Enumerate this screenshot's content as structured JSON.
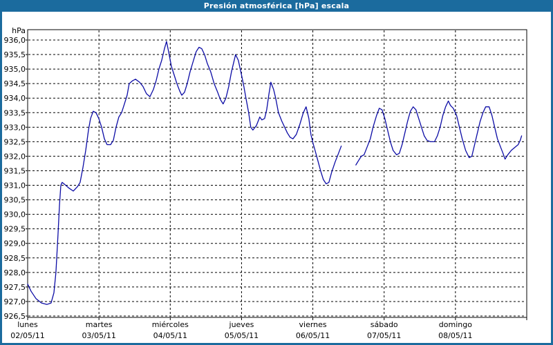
{
  "window": {
    "title": "Presión atmosférica [hPa] escala"
  },
  "colors": {
    "frame_blue": "#1B6B9E",
    "title_text": "#FFFFFF",
    "plot_background": "#FFFFFF",
    "grid": "#000000",
    "axis_text": "#000000",
    "line": "#0B0BA5"
  },
  "chart_data": {
    "type": "line",
    "title": "Presión atmosférica [hPa] escala",
    "unit_label": "hPa",
    "grid": "dashed",
    "legend_position": "none",
    "y_axis": {
      "min": 926.5,
      "max": 936.0,
      "step": 0.5,
      "tick_labels": [
        "936,0",
        "935,5",
        "935,0",
        "934,5",
        "934,0",
        "933,5",
        "933,0",
        "932,5",
        "932,0",
        "931,5",
        "931,0",
        "930,5",
        "930,0",
        "929,5",
        "929,0",
        "928,5",
        "928,0",
        "927,5",
        "927,0",
        "926,5"
      ]
    },
    "x_axis": {
      "unit": "days",
      "days": [
        {
          "name": "lunes",
          "date": "02/05/11"
        },
        {
          "name": "martes",
          "date": "03/05/11"
        },
        {
          "name": "miércoles",
          "date": "04/05/11"
        },
        {
          "name": "jueves",
          "date": "05/05/11"
        },
        {
          "name": "viernes",
          "date": "06/05/11"
        },
        {
          "name": "sábado",
          "date": "07/05/11"
        },
        {
          "name": "domingo",
          "date": "08/05/11"
        }
      ]
    },
    "series": [
      {
        "name": "Presión atmosférica [hPa]",
        "note": "t is days since lunes 02/05/11 00:00; gap in data late viernes",
        "segments": [
          [
            [
              0.0,
              927.6
            ],
            [
              0.048,
              927.35
            ],
            [
              0.116,
              927.1
            ],
            [
              0.194,
              926.95
            ],
            [
              0.271,
              926.9
            ],
            [
              0.329,
              926.95
            ],
            [
              0.368,
              927.3
            ],
            [
              0.397,
              928.0
            ],
            [
              0.426,
              929.3
            ],
            [
              0.446,
              930.3
            ],
            [
              0.465,
              931.0
            ],
            [
              0.484,
              931.1
            ],
            [
              0.533,
              931.0
            ],
            [
              0.581,
              930.9
            ],
            [
              0.64,
              930.8
            ],
            [
              0.698,
              930.95
            ],
            [
              0.736,
              931.1
            ],
            [
              0.775,
              931.6
            ],
            [
              0.814,
              932.2
            ],
            [
              0.853,
              932.9
            ],
            [
              0.882,
              933.3
            ],
            [
              0.92,
              933.55
            ],
            [
              0.959,
              933.5
            ],
            [
              0.998,
              933.3
            ],
            [
              1.037,
              933.0
            ],
            [
              1.076,
              932.6
            ],
            [
              1.114,
              932.4
            ],
            [
              1.163,
              932.4
            ],
            [
              1.202,
              932.55
            ],
            [
              1.24,
              933.0
            ],
            [
              1.279,
              933.35
            ],
            [
              1.318,
              933.5
            ],
            [
              1.357,
              933.8
            ],
            [
              1.395,
              934.1
            ],
            [
              1.424,
              934.5
            ],
            [
              1.473,
              934.6
            ],
            [
              1.512,
              934.65
            ],
            [
              1.57,
              934.55
            ],
            [
              1.618,
              934.4
            ],
            [
              1.667,
              934.15
            ],
            [
              1.715,
              934.05
            ],
            [
              1.764,
              934.3
            ],
            [
              1.802,
              934.6
            ],
            [
              1.841,
              935.0
            ],
            [
              1.88,
              935.3
            ],
            [
              1.919,
              935.7
            ],
            [
              1.948,
              935.95
            ],
            [
              1.977,
              935.6
            ],
            [
              2.016,
              935.1
            ],
            [
              2.054,
              934.8
            ],
            [
              2.093,
              934.5
            ],
            [
              2.132,
              934.25
            ],
            [
              2.161,
              934.1
            ],
            [
              2.2,
              934.2
            ],
            [
              2.238,
              934.5
            ],
            [
              2.277,
              934.9
            ],
            [
              2.326,
              935.3
            ],
            [
              2.364,
              935.6
            ],
            [
              2.403,
              935.75
            ],
            [
              2.442,
              935.7
            ],
            [
              2.481,
              935.5
            ],
            [
              2.519,
              935.2
            ],
            [
              2.568,
              934.9
            ],
            [
              2.616,
              934.5
            ],
            [
              2.665,
              934.2
            ],
            [
              2.703,
              933.95
            ],
            [
              2.742,
              933.8
            ],
            [
              2.781,
              934.0
            ],
            [
              2.82,
              934.4
            ],
            [
              2.858,
              934.9
            ],
            [
              2.887,
              935.2
            ],
            [
              2.916,
              935.5
            ],
            [
              2.955,
              935.3
            ],
            [
              3.004,
              934.75
            ],
            [
              3.033,
              934.4
            ],
            [
              3.062,
              934.0
            ],
            [
              3.1,
              933.5
            ],
            [
              3.13,
              933.0
            ],
            [
              3.159,
              932.9
            ],
            [
              3.207,
              933.05
            ],
            [
              3.256,
              933.35
            ],
            [
              3.285,
              933.25
            ],
            [
              3.324,
              933.3
            ],
            [
              3.353,
              933.6
            ],
            [
              3.382,
              934.1
            ],
            [
              3.411,
              934.55
            ],
            [
              3.45,
              934.3
            ],
            [
              3.479,
              934.0
            ],
            [
              3.517,
              933.5
            ],
            [
              3.566,
              933.2
            ],
            [
              3.605,
              933.0
            ],
            [
              3.643,
              932.8
            ],
            [
              3.682,
              932.65
            ],
            [
              3.721,
              932.6
            ],
            [
              3.769,
              932.75
            ],
            [
              3.818,
              933.1
            ],
            [
              3.866,
              933.5
            ],
            [
              3.905,
              933.7
            ],
            [
              3.944,
              933.3
            ],
            [
              3.973,
              932.75
            ],
            [
              4.002,
              932.45
            ],
            [
              4.031,
              932.2
            ],
            [
              4.07,
              931.85
            ],
            [
              4.109,
              931.5
            ],
            [
              4.147,
              931.2
            ],
            [
              4.186,
              931.05
            ],
            [
              4.225,
              931.1
            ],
            [
              4.264,
              931.45
            ],
            [
              4.312,
              931.8
            ],
            [
              4.36,
              932.1
            ],
            [
              4.399,
              932.35
            ]
          ],
          [
            [
              4.603,
              931.7
            ],
            [
              4.641,
              931.85
            ],
            [
              4.68,
              932.0
            ],
            [
              4.719,
              932.05
            ],
            [
              4.758,
              932.3
            ],
            [
              4.806,
              932.6
            ],
            [
              4.845,
              933.0
            ],
            [
              4.893,
              933.4
            ],
            [
              4.932,
              933.65
            ],
            [
              4.971,
              933.6
            ],
            [
              5.01,
              933.3
            ],
            [
              5.048,
              932.9
            ],
            [
              5.087,
              932.5
            ],
            [
              5.126,
              932.2
            ],
            [
              5.174,
              932.05
            ],
            [
              5.213,
              932.1
            ],
            [
              5.252,
              932.4
            ],
            [
              5.291,
              932.8
            ],
            [
              5.329,
              933.2
            ],
            [
              5.368,
              933.55
            ],
            [
              5.407,
              933.7
            ],
            [
              5.446,
              933.6
            ],
            [
              5.485,
              933.3
            ],
            [
              5.523,
              933.0
            ],
            [
              5.562,
              932.7
            ],
            [
              5.601,
              932.55
            ],
            [
              5.649,
              932.5
            ],
            [
              5.707,
              932.5
            ],
            [
              5.746,
              932.7
            ],
            [
              5.785,
              933.0
            ],
            [
              5.823,
              933.4
            ],
            [
              5.862,
              933.7
            ],
            [
              5.901,
              933.9
            ],
            [
              5.93,
              933.75
            ],
            [
              5.969,
              933.65
            ],
            [
              6.017,
              933.4
            ],
            [
              6.056,
              933.0
            ],
            [
              6.095,
              932.6
            ],
            [
              6.143,
              932.2
            ],
            [
              6.192,
              931.95
            ],
            [
              6.23,
              932.0
            ],
            [
              6.269,
              932.4
            ],
            [
              6.308,
              932.8
            ],
            [
              6.347,
              933.2
            ],
            [
              6.386,
              933.5
            ],
            [
              6.424,
              933.7
            ],
            [
              6.473,
              933.7
            ],
            [
              6.512,
              933.4
            ],
            [
              6.55,
              933.0
            ],
            [
              6.589,
              932.6
            ],
            [
              6.628,
              932.35
            ],
            [
              6.667,
              932.1
            ],
            [
              6.696,
              931.9
            ],
            [
              6.734,
              932.05
            ],
            [
              6.783,
              932.2
            ],
            [
              6.831,
              932.3
            ],
            [
              6.88,
              932.4
            ],
            [
              6.909,
              932.55
            ],
            [
              6.928,
              932.7
            ]
          ]
        ]
      }
    ]
  }
}
